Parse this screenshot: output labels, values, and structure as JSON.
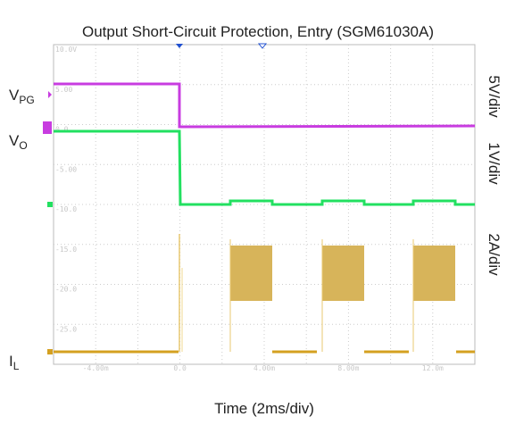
{
  "title": "Output Short-Circuit Protection, Entry (SGM61030A)",
  "x_label": "Time (2ms/div)",
  "scales": [
    "5V/div",
    "1V/div",
    "2A/div"
  ],
  "signals": [
    {
      "main": "V",
      "sub": "PG"
    },
    {
      "main": "V",
      "sub": "O"
    },
    {
      "main": "I",
      "sub": "L"
    }
  ],
  "screen_y_labels": [
    "10.0V",
    "5.00",
    "0.0",
    "-5.00",
    "-10.0",
    "-15.0",
    "-20.0",
    "-25.0"
  ],
  "screen_x_labels": [
    "-4.00m",
    "0.0",
    "4.00m",
    "8.00m",
    "12.0m"
  ]
}
